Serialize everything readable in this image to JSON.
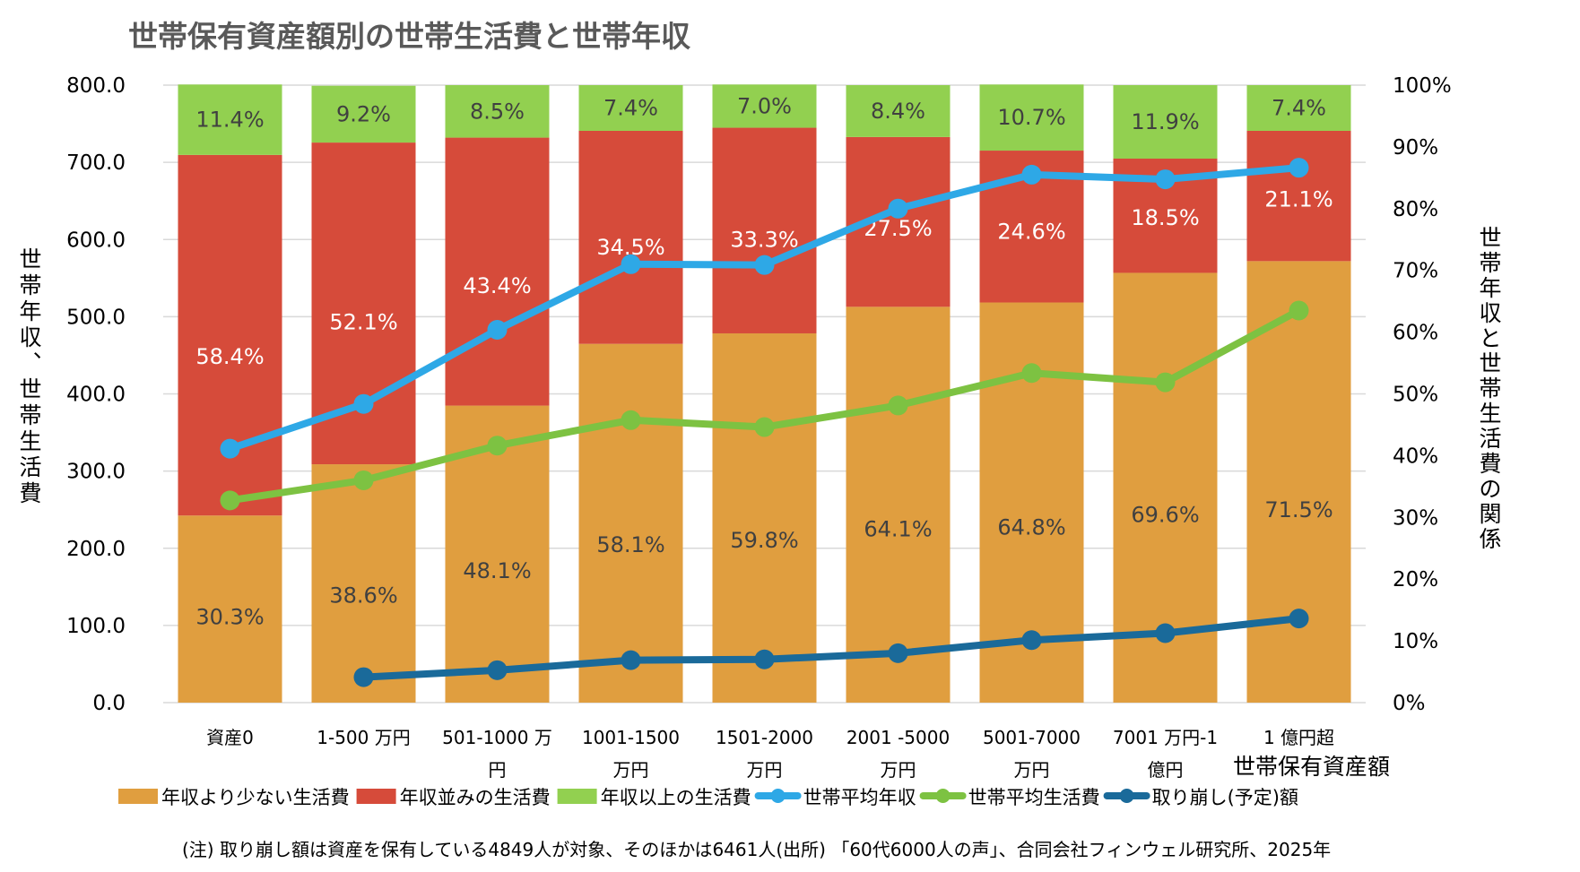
{
  "chart_data": {
    "type": "bar",
    "title": "世帯保有資産額別の世帯生活費と世帯年収",
    "xlabel": "世帯保有資産額",
    "ylabel": "世帯年収、世帯生活費",
    "y2label": "世帯年収と世帯生活費の関係",
    "ylim": [
      0,
      800
    ],
    "y2lim": [
      0,
      100
    ],
    "yticks": [
      "0.0",
      "100.0",
      "200.0",
      "300.0",
      "400.0",
      "500.0",
      "600.0",
      "700.0",
      "800.0"
    ],
    "y2ticks": [
      "0%",
      "10%",
      "20%",
      "30%",
      "40%",
      "50%",
      "60%",
      "70%",
      "80%",
      "90%",
      "100%"
    ],
    "grid": true,
    "legend_position": "bottom",
    "categories": [
      [
        "資産0"
      ],
      [
        "1-500 万円"
      ],
      [
        "501-1000 万",
        "円"
      ],
      [
        "1001-1500",
        "万円"
      ],
      [
        "1501-2000",
        "万円"
      ],
      [
        "2001 -5000",
        "万円"
      ],
      [
        "5001-7000",
        "万円"
      ],
      [
        "7001 万円-1",
        "億円"
      ],
      [
        "1 億円超"
      ]
    ],
    "bar_series": [
      {
        "name": "年収より少ない生活費",
        "color": "#E09E3F",
        "label_color": "#404040",
        "values": [
          30.3,
          38.6,
          48.1,
          58.1,
          59.8,
          64.1,
          64.8,
          69.6,
          71.5
        ],
        "labels": [
          "30.3%",
          "38.6%",
          "48.1%",
          "58.1%",
          "59.8%",
          "64.1%",
          "64.8%",
          "69.6%",
          "71.5%"
        ]
      },
      {
        "name": "年収並みの生活費",
        "color": "#D64B3A",
        "label_color": "#FFFFFF",
        "values": [
          58.4,
          52.1,
          43.4,
          34.5,
          33.3,
          27.5,
          24.6,
          18.5,
          21.1
        ],
        "labels": [
          "58.4%",
          "52.1%",
          "43.4%",
          "34.5%",
          "33.3%",
          "27.5%",
          "24.6%",
          "18.5%",
          "21.1%"
        ]
      },
      {
        "name": "年収以上の生活費",
        "color": "#92D050",
        "label_color": "#404040",
        "values": [
          11.4,
          9.2,
          8.5,
          7.4,
          7.0,
          8.4,
          10.7,
          11.9,
          7.4
        ],
        "labels": [
          "11.4%",
          "9.2%",
          "8.5%",
          "7.4%",
          "7.0%",
          "8.4%",
          "10.7%",
          "11.9%",
          "7.4%"
        ]
      }
    ],
    "line_series": [
      {
        "name": "世帯平均年収",
        "color": "#2EA8E6",
        "values": [
          329,
          387,
          483,
          568,
          567,
          640,
          684,
          678,
          693
        ]
      },
      {
        "name": "世帯平均生活費",
        "color": "#7DC242",
        "values": [
          262,
          288,
          333,
          366,
          357,
          385,
          427,
          415,
          508
        ]
      },
      {
        "name": "取り崩し(予定)額",
        "color": "#1A6A9A",
        "values": [
          null,
          33,
          42,
          55,
          56,
          64,
          81,
          90,
          109
        ]
      }
    ],
    "note": "(注)  取り崩し額は資産を保有している4849人が対象、そのほかは6461人(出所) 「60代6000人の声」、合同会社フィンウェル研究所、2025年"
  }
}
